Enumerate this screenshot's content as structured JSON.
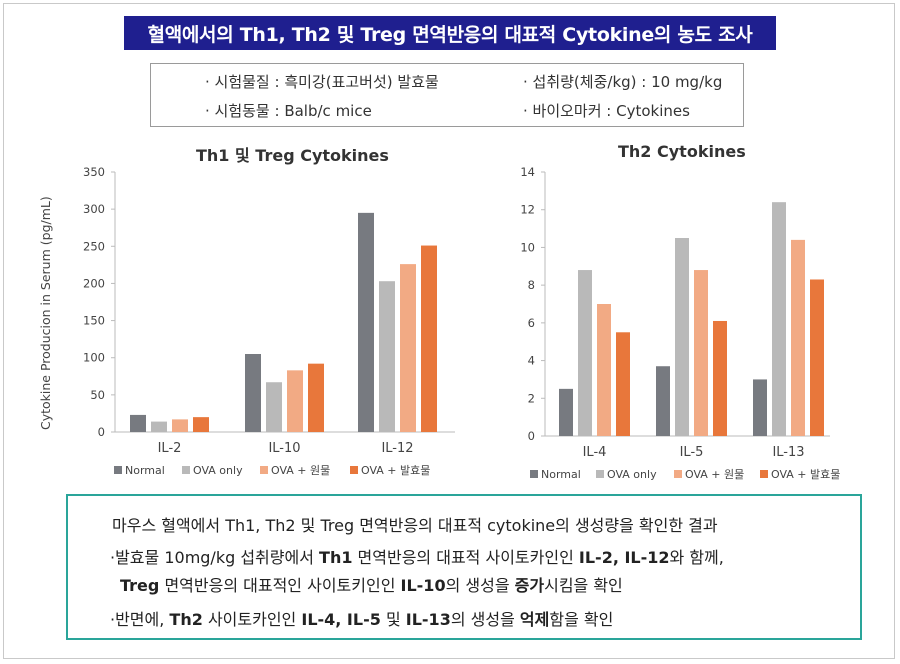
{
  "title": "혈액에서의 Th1, Th2 및 Treg 면역반응의 대표적 Cytokine의 농도 조사",
  "info": {
    "material": "· 시험물질 : 흑미강(표고버섯) 발효물",
    "dose": "· 섭취량(체중/kg) : 10 mg/kg",
    "animal": "· 시험동물 : Balb/c mice",
    "biomarker": "· 바이오마커 : Cytokines"
  },
  "colors": {
    "normal": "#777a80",
    "ova_only": "#b9b9b9",
    "ova_ferment": "#f2aa84",
    "ova_extract": "#e8773b"
  },
  "chart_data": [
    {
      "type": "bar",
      "title": "Th1 및 Treg Cytokines",
      "ylabel": "Cytokine Producion in Serum (pg/mL)",
      "categories": [
        "IL-2",
        "IL-10",
        "IL-12"
      ],
      "ylim": [
        0,
        350
      ],
      "yticks": [
        "0",
        "50",
        "100",
        "150",
        "200",
        "250",
        "300",
        "350"
      ],
      "series": [
        {
          "name": "Normal",
          "values": [
            23,
            105,
            295
          ]
        },
        {
          "name": "OVA only",
          "values": [
            14,
            67,
            203
          ]
        },
        {
          "name": "OVA + 원물",
          "values": [
            17,
            83,
            226
          ]
        },
        {
          "name": "OVA + 발효물",
          "values": [
            20,
            92,
            251
          ]
        }
      ],
      "legend": "bottom",
      "grid": false
    },
    {
      "type": "bar",
      "title": "Th2 Cytokines",
      "ylabel": "",
      "categories": [
        "IL-4",
        "IL-5",
        "IL-13"
      ],
      "ylim": [
        0,
        14
      ],
      "yticks": [
        "0",
        "2",
        "4",
        "6",
        "8",
        "10",
        "12",
        "14"
      ],
      "series": [
        {
          "name": "Normal",
          "values": [
            2.5,
            3.7,
            3.0
          ]
        },
        {
          "name": "OVA only",
          "values": [
            8.8,
            10.5,
            12.4
          ]
        },
        {
          "name": "OVA + 원물",
          "values": [
            7.0,
            8.8,
            10.4
          ]
        },
        {
          "name": "OVA + 발효물",
          "values": [
            5.5,
            6.1,
            8.3
          ]
        }
      ],
      "legend": "bottom",
      "grid": false
    }
  ],
  "summary": {
    "line1": "마우스 혈액에서 Th1, Th2 및 Treg 면역반응의 대표적 cytokine의 생성량을 확인한 결과",
    "line2": [
      {
        "t": "·발효물 10mg/kg 섭취량에서 ",
        "b": false
      },
      {
        "t": "Th1",
        "b": true
      },
      {
        "t": " 면역반응의 대표적 사이토카인인 ",
        "b": false
      },
      {
        "t": "IL-2, IL-12",
        "b": true
      },
      {
        "t": "와 함께,",
        "b": false
      }
    ],
    "line3": [
      {
        "t": "Treg",
        "b": true
      },
      {
        "t": " 면역반응의 대표적인 사이토키인인 ",
        "b": false
      },
      {
        "t": "IL-10",
        "b": true
      },
      {
        "t": "의 생성을 ",
        "b": false
      },
      {
        "t": "증가",
        "b": true
      },
      {
        "t": "시킴을 확인",
        "b": false
      }
    ],
    "line4": [
      {
        "t": "·반면에, ",
        "b": false
      },
      {
        "t": "Th2",
        "b": true
      },
      {
        "t": " 사이토카인인 ",
        "b": false
      },
      {
        "t": "IL-4, IL-5",
        "b": true
      },
      {
        "t": " 및 ",
        "b": false
      },
      {
        "t": "IL-13",
        "b": true
      },
      {
        "t": "의 생성을 ",
        "b": false
      },
      {
        "t": "억제",
        "b": true
      },
      {
        "t": "함을 확인",
        "b": false
      }
    ]
  }
}
